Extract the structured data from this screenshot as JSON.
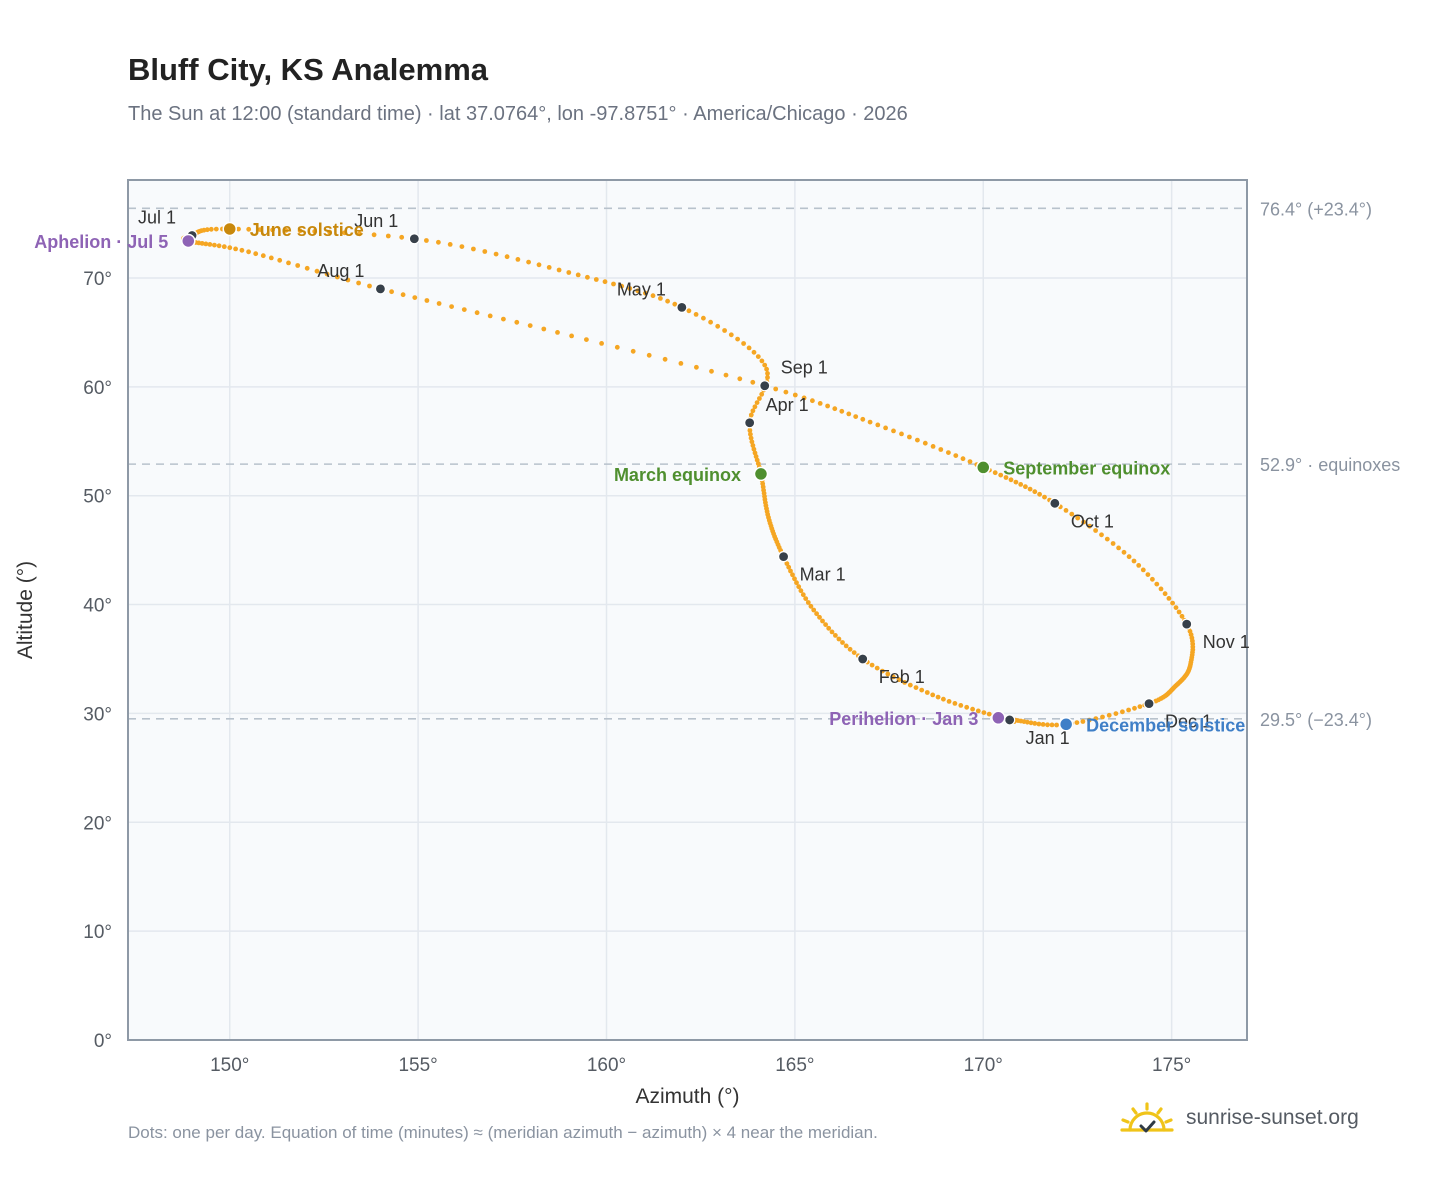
{
  "title": "Bluff City, KS Analemma",
  "subtitle": "The Sun at 12:00 (standard time) · lat 37.0764°, lon -97.8751° · America/Chicago · 2026",
  "footnote": "Dots: one per day. Equation of time (minutes) ≈ (meridian azimuth − azimuth) × 4 near the meridian.",
  "brand": {
    "name": "sunrise-sunset.org",
    "icon": "sunset-logo-icon"
  },
  "colors": {
    "curve": "#f5a623",
    "marker": "#37404a",
    "june": "#c8880c",
    "equinox": "#4f8f2f",
    "december": "#3f7fc7",
    "apsis": "#8e63b5",
    "reference": "#b8c2cc",
    "grid": "#e3e8ee",
    "plot_bg": "#f8fafc",
    "frame": "#8e99a6"
  },
  "chart_data": {
    "type": "scatter",
    "xlabel": "Azimuth (°)",
    "ylabel": "Altitude (°)",
    "xlim": [
      147.3,
      177.0
    ],
    "ylim": [
      0,
      79
    ],
    "x_ticks": [
      150,
      155,
      160,
      165,
      170,
      175
    ],
    "x_tick_labels": [
      "150°",
      "155°",
      "160°",
      "165°",
      "170°",
      "175°"
    ],
    "y_ticks": [
      0,
      10,
      20,
      30,
      40,
      50,
      60,
      70
    ],
    "y_tick_labels": [
      "0°",
      "10°",
      "20°",
      "30°",
      "40°",
      "50°",
      "60°",
      "70°"
    ],
    "grid": true,
    "reference_lines": [
      {
        "y": 76.4,
        "label": "76.4° (+23.4°)"
      },
      {
        "y": 52.9,
        "label": "52.9° · equinoxes"
      },
      {
        "y": 29.5,
        "label": "29.5° (−23.4°)"
      }
    ],
    "series_path": [
      {
        "date": "Jan 1",
        "az": 170.7,
        "alt": 29.4
      },
      {
        "date": "Jan 16",
        "az": 168.8,
        "alt": 31.5
      },
      {
        "date": "Feb 1",
        "az": 166.8,
        "alt": 35.0
      },
      {
        "date": "Feb 15",
        "az": 165.5,
        "alt": 39.5
      },
      {
        "date": "Mar 1",
        "az": 164.7,
        "alt": 44.4
      },
      {
        "date": "Mar 10",
        "az": 164.3,
        "alt": 48.0
      },
      {
        "date": "Mar 20",
        "az": 164.1,
        "alt": 52.0
      },
      {
        "date": "Apr 1",
        "az": 163.8,
        "alt": 56.7
      },
      {
        "date": "Apr 15",
        "az": 164.2,
        "alt": 62.0
      },
      {
        "date": "May 1",
        "az": 162.0,
        "alt": 67.3
      },
      {
        "date": "May 15",
        "az": 159.0,
        "alt": 70.5
      },
      {
        "date": "Jun 1",
        "az": 154.9,
        "alt": 73.6
      },
      {
        "date": "Jun 21",
        "az": 150.0,
        "alt": 74.5
      },
      {
        "date": "Jul 1",
        "az": 149.0,
        "alt": 73.9
      },
      {
        "date": "Jul 5",
        "az": 148.9,
        "alt": 73.4
      },
      {
        "date": "Jul 15",
        "az": 150.5,
        "alt": 72.4
      },
      {
        "date": "Aug 1",
        "az": 154.0,
        "alt": 69.0
      },
      {
        "date": "Aug 15",
        "az": 158.7,
        "alt": 65.0
      },
      {
        "date": "Sep 1",
        "az": 164.2,
        "alt": 60.1
      },
      {
        "date": "Sep 10",
        "az": 167.2,
        "alt": 56.5
      },
      {
        "date": "Sep 22",
        "az": 170.0,
        "alt": 52.6
      },
      {
        "date": "Oct 1",
        "az": 171.9,
        "alt": 49.3
      },
      {
        "date": "Oct 15",
        "az": 174.0,
        "alt": 44.0
      },
      {
        "date": "Nov 1",
        "az": 175.4,
        "alt": 38.2
      },
      {
        "date": "Nov 12",
        "az": 175.5,
        "alt": 34.5
      },
      {
        "date": "Nov 20",
        "az": 175.1,
        "alt": 32.5
      },
      {
        "date": "Dec 1",
        "az": 174.4,
        "alt": 30.9
      },
      {
        "date": "Dec 21",
        "az": 172.2,
        "alt": 29.0
      },
      {
        "date": "Dec 31",
        "az": 170.8,
        "alt": 29.4
      }
    ],
    "month_markers": [
      {
        "label": "Jan 1",
        "az": 170.7,
        "alt": 29.4,
        "anchor": "below-right"
      },
      {
        "label": "Feb 1",
        "az": 166.8,
        "alt": 35.0,
        "anchor": "below-right"
      },
      {
        "label": "Mar 1",
        "az": 164.7,
        "alt": 44.4,
        "anchor": "below-right"
      },
      {
        "label": "Apr 1",
        "az": 163.8,
        "alt": 56.7,
        "anchor": "above-right"
      },
      {
        "label": "May 1",
        "az": 162.0,
        "alt": 67.3,
        "anchor": "above-left"
      },
      {
        "label": "Jun 1",
        "az": 154.9,
        "alt": 73.6,
        "anchor": "above-left"
      },
      {
        "label": "Jul 1",
        "az": 149.0,
        "alt": 73.9,
        "anchor": "above-left"
      },
      {
        "label": "Aug 1",
        "az": 154.0,
        "alt": 69.0,
        "anchor": "above-left"
      },
      {
        "label": "Sep 1",
        "az": 164.2,
        "alt": 60.1,
        "anchor": "above-right"
      },
      {
        "label": "Oct 1",
        "az": 171.9,
        "alt": 49.3,
        "anchor": "below-right"
      },
      {
        "label": "Nov 1",
        "az": 175.4,
        "alt": 38.2,
        "anchor": "below-right"
      },
      {
        "label": "Dec 1",
        "az": 174.4,
        "alt": 30.9,
        "anchor": "below-right"
      }
    ],
    "events": [
      {
        "label": "June solstice",
        "az": 150.0,
        "alt": 74.5,
        "color_key": "june",
        "anchor": "right"
      },
      {
        "label": "March equinox",
        "az": 164.1,
        "alt": 52.0,
        "color_key": "equinox",
        "anchor": "left"
      },
      {
        "label": "September equinox",
        "az": 170.0,
        "alt": 52.6,
        "color_key": "equinox",
        "anchor": "right"
      },
      {
        "label": "December solstice",
        "az": 172.2,
        "alt": 29.0,
        "color_key": "december",
        "anchor": "right"
      },
      {
        "label": "Aphelion · Jul 5",
        "az": 148.9,
        "alt": 73.4,
        "color_key": "apsis",
        "anchor": "left"
      },
      {
        "label": "Perihelion · Jan 3",
        "az": 170.4,
        "alt": 29.6,
        "color_key": "apsis",
        "anchor": "left"
      }
    ]
  }
}
